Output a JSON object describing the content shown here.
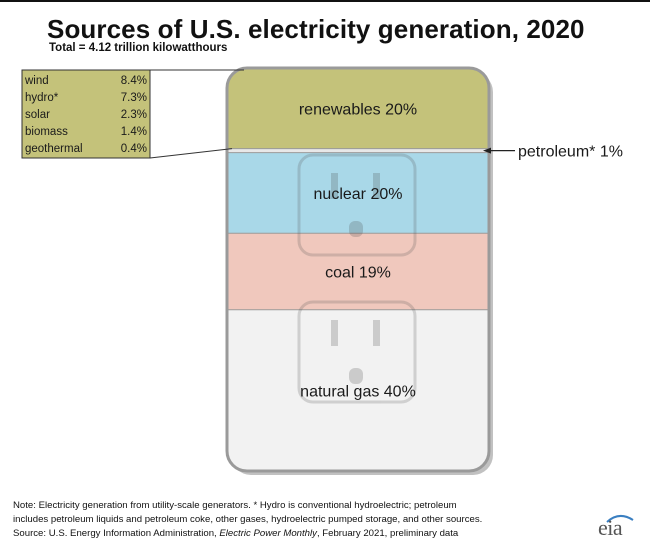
{
  "title": "Sources of U.S. electricity generation, 2020",
  "subtitle": "Total = 4.12 trillion kilowatthours",
  "chart_data": {
    "type": "bar",
    "stacked": true,
    "total_label": "Total = 4.12 trillion kilowatthours",
    "series": [
      {
        "key": "natural_gas",
        "label": "natural gas 40%",
        "value": 40,
        "color": "#f2f2f2"
      },
      {
        "key": "coal",
        "label": "coal 19%",
        "value": 19,
        "color": "#f0c8bd"
      },
      {
        "key": "nuclear",
        "label": "nuclear 20%",
        "value": 20,
        "color": "#a9d8e8"
      },
      {
        "key": "petroleum",
        "label": "petroleum* 1%",
        "value": 1,
        "color": "#e8e8e8"
      },
      {
        "key": "renewables",
        "label": "renewables 20%",
        "value": 20,
        "color": "#c4c27a"
      }
    ],
    "renewables_breakdown": [
      {
        "name": "wind",
        "value": "8.4%"
      },
      {
        "name": "hydro*",
        "value": "7.3%"
      },
      {
        "name": "solar",
        "value": "2.3%"
      },
      {
        "name": "biomass",
        "value": "1.4%"
      },
      {
        "name": "geothermal",
        "value": "0.4%"
      }
    ]
  },
  "footer": {
    "note_line1": "Note: Electricity generation from utility-scale generators. * Hydro is conventional hydroelectric; petroleum",
    "note_line2": "includes petroleum liquids and petroleum coke, other gases, hydroelectric pumped storage, and other sources.",
    "source_prefix": "Source: U.S. Energy Information Administration, ",
    "source_pub": "Electric Power Monthly",
    "source_suffix": ", February 2021, preliminary data",
    "logo": "eia"
  }
}
